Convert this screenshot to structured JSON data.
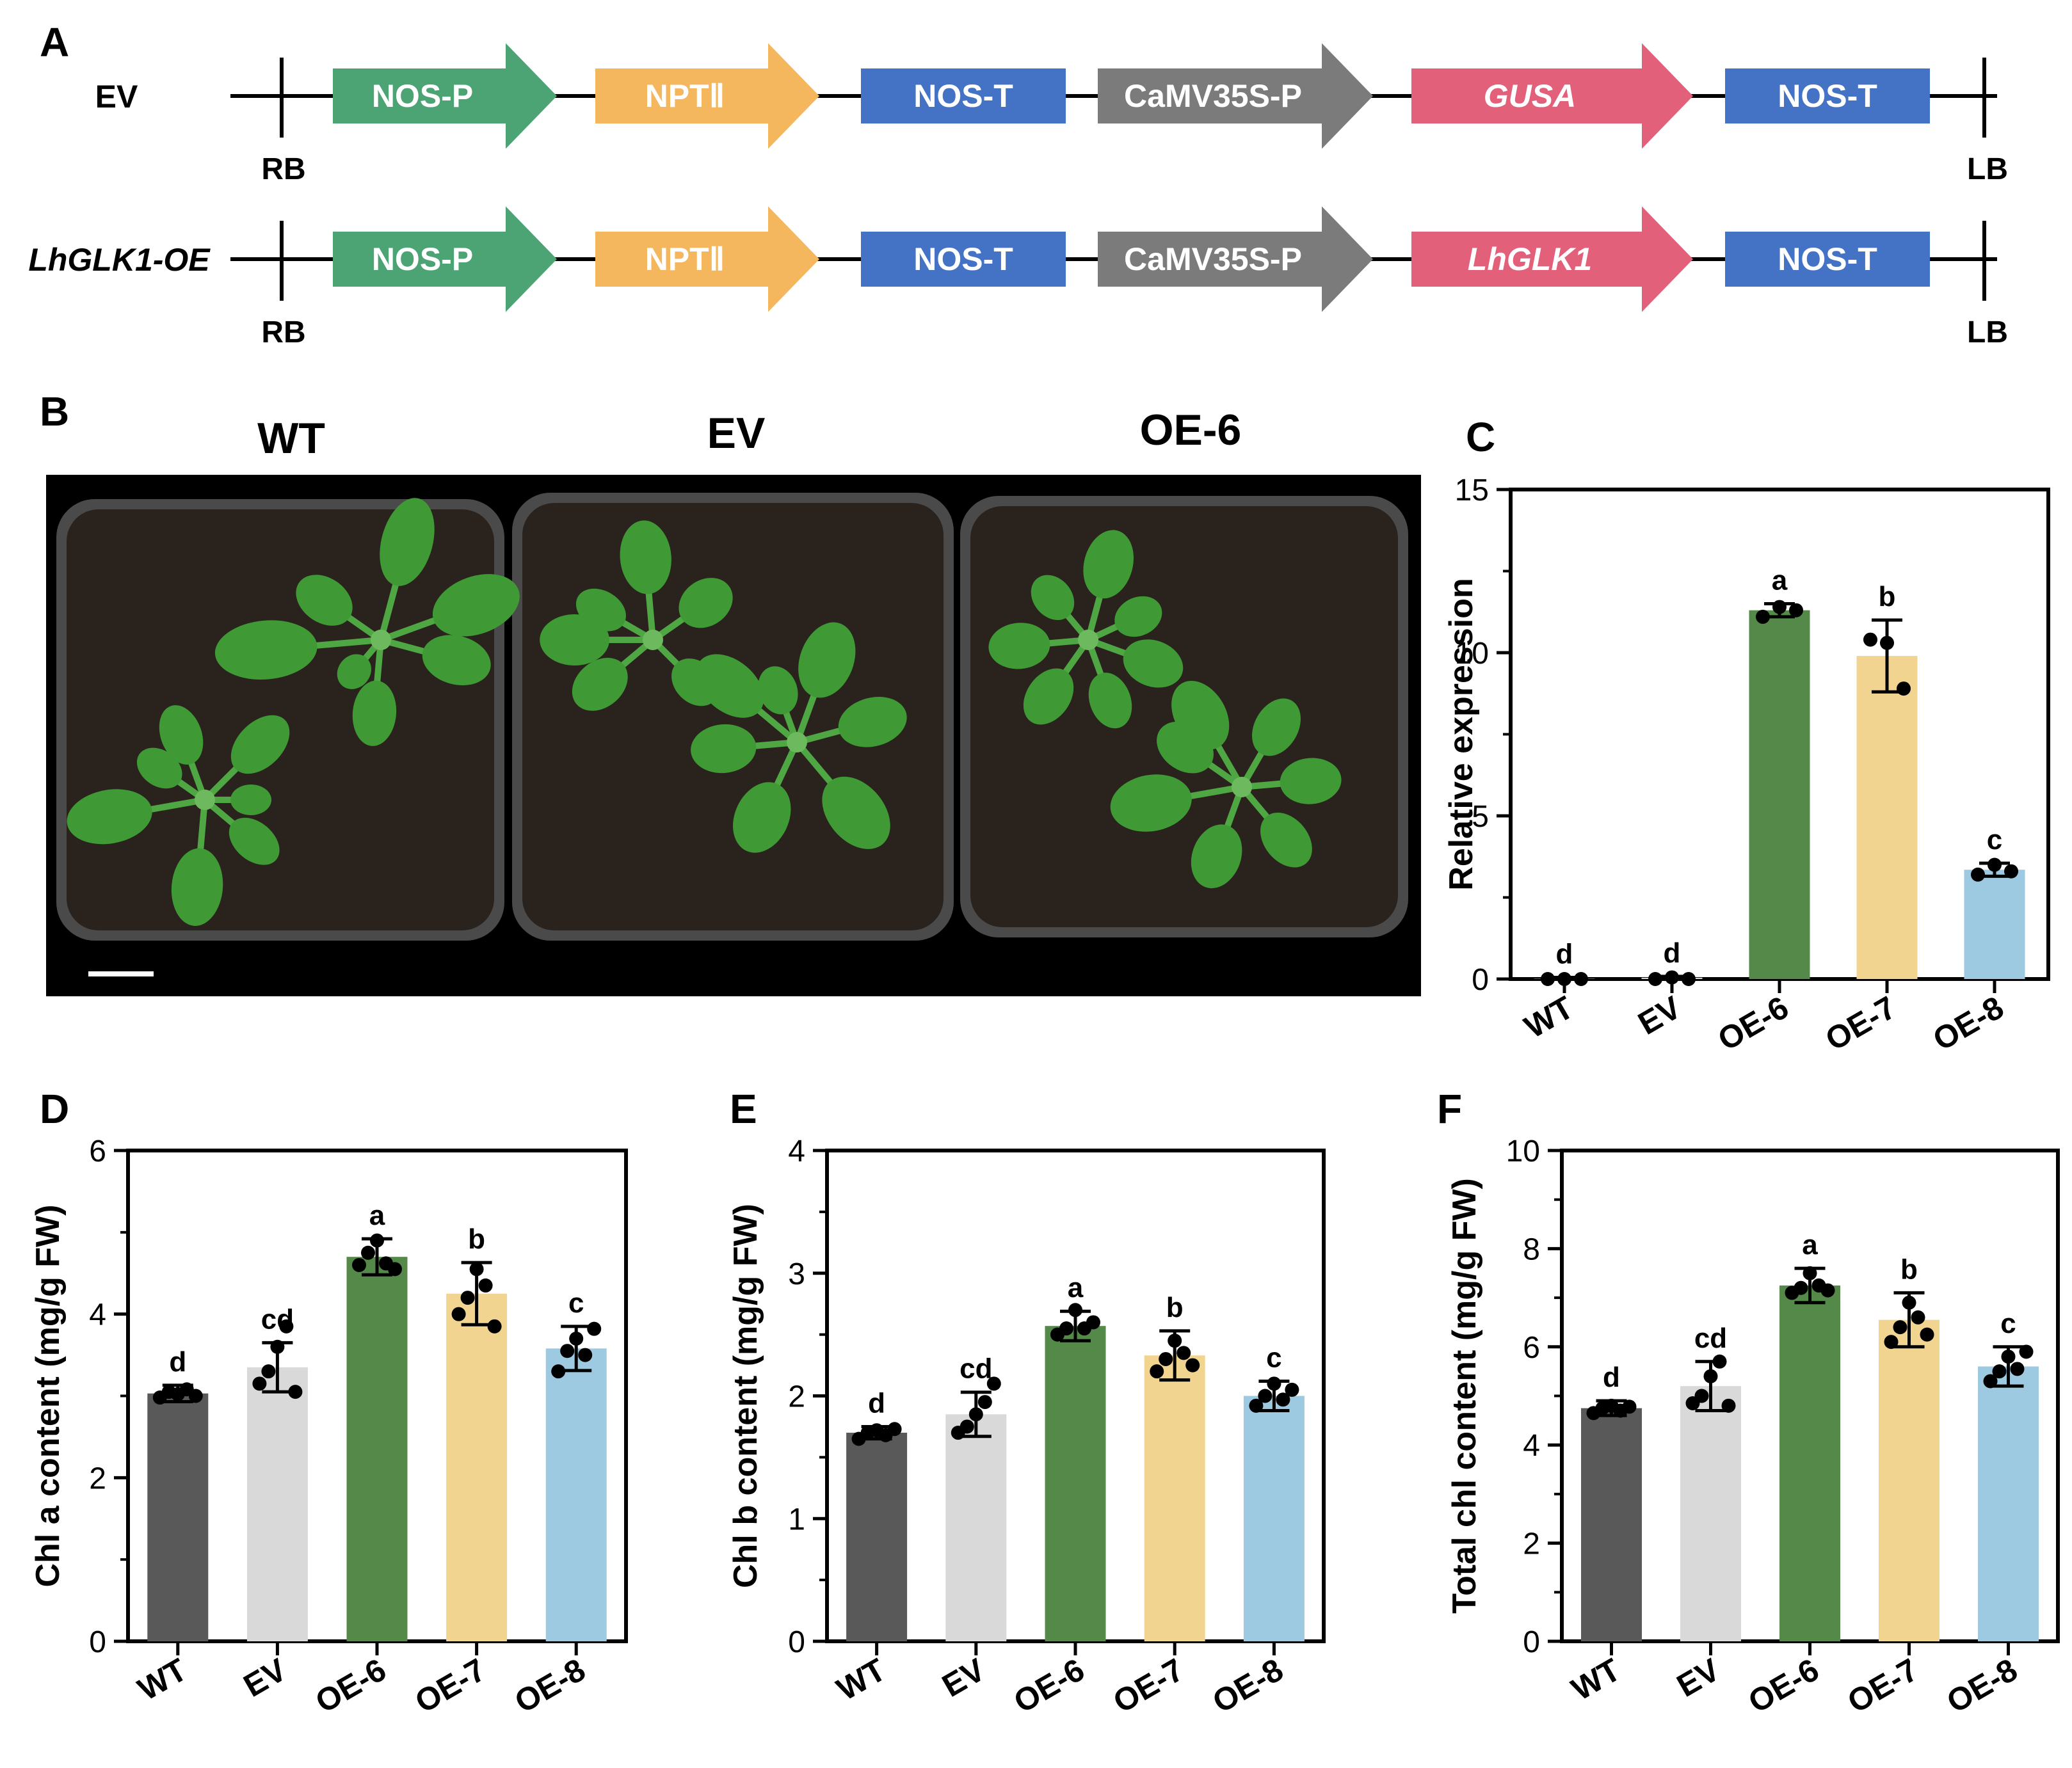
{
  "panels": {
    "A": "A",
    "B": "B",
    "C": "C",
    "D": "D",
    "E": "E",
    "F": "F"
  },
  "constructs": {
    "rows": [
      {
        "label": "EV",
        "label_italic": false,
        "left_border": "RB",
        "right_border": "LB",
        "segments": [
          {
            "text": "NOS-P",
            "shape": "arrow",
            "color": "#4ca474",
            "italic": false
          },
          {
            "text": "NPTⅡ",
            "shape": "arrow",
            "color": "#f4b75e",
            "italic": false
          },
          {
            "text": "NOS-T",
            "shape": "box",
            "color": "#4472c4",
            "italic": false
          },
          {
            "text": "CaMV35S-P",
            "shape": "arrow",
            "color": "#7b7b7b",
            "italic": false
          },
          {
            "text": "GUSA",
            "shape": "arrow",
            "color": "#e2607a",
            "italic": true
          },
          {
            "text": "NOS-T",
            "shape": "box",
            "color": "#4472c4",
            "italic": false
          }
        ]
      },
      {
        "label": "LhGLK1-OE",
        "label_italic": true,
        "left_border": "RB",
        "right_border": "LB",
        "segments": [
          {
            "text": "NOS-P",
            "shape": "arrow",
            "color": "#4ca474",
            "italic": false
          },
          {
            "text": "NPTⅡ",
            "shape": "arrow",
            "color": "#f4b75e",
            "italic": false
          },
          {
            "text": "NOS-T",
            "shape": "box",
            "color": "#4472c4",
            "italic": false
          },
          {
            "text": "CaMV35S-P",
            "shape": "arrow",
            "color": "#7b7b7b",
            "italic": false
          },
          {
            "text": "LhGLK1",
            "shape": "arrow",
            "color": "#e2607a",
            "italic": true
          },
          {
            "text": "NOS-T",
            "shape": "box",
            "color": "#4472c4",
            "italic": false
          }
        ]
      }
    ]
  },
  "photo": {
    "labels": [
      "WT",
      "EV",
      "OE-6"
    ],
    "background": "#000000",
    "soil_color": "#2a221d",
    "leaf_color": "#3f9a36"
  },
  "chart_data": [
    {
      "panel": "C",
      "type": "bar",
      "categories": [
        "WT",
        "EV",
        "OE-6",
        "OE-7",
        "OE-8"
      ],
      "values": [
        0.02,
        0.04,
        11.3,
        9.9,
        3.35
      ],
      "errors": [
        0.03,
        0.04,
        0.2,
        1.1,
        0.2
      ],
      "points": [
        [
          0.0,
          0.0,
          0.0
        ],
        [
          0.0,
          0.05,
          0.0
        ],
        [
          11.1,
          11.4,
          11.3
        ],
        [
          10.4,
          10.3,
          8.9
        ],
        [
          3.2,
          3.5,
          3.3
        ]
      ],
      "significance": [
        "d",
        "d",
        "a",
        "b",
        "c"
      ],
      "colors": [
        "#595959",
        "#d9d9d9",
        "#548949",
        "#f2d491",
        "#9ecae1"
      ],
      "ylabel": "Relative expression",
      "ylim": [
        0,
        15
      ],
      "yticks": [
        0,
        5,
        10,
        15
      ]
    },
    {
      "panel": "D",
      "type": "bar",
      "categories": [
        "WT",
        "EV",
        "OE-6",
        "OE-7",
        "OE-8"
      ],
      "values": [
        3.03,
        3.35,
        4.7,
        4.25,
        3.58
      ],
      "errors": [
        0.1,
        0.3,
        0.22,
        0.38,
        0.27
      ],
      "points": [
        [
          2.98,
          3.05,
          3.02,
          3.08,
          3.0
        ],
        [
          3.15,
          3.3,
          3.6,
          3.85,
          3.05
        ],
        [
          4.6,
          4.75,
          4.9,
          4.62,
          4.55
        ],
        [
          4.0,
          4.2,
          4.55,
          4.35,
          3.85
        ],
        [
          3.3,
          3.55,
          3.7,
          3.5,
          3.82
        ]
      ],
      "significance": [
        "d",
        "cd",
        "a",
        "b",
        "c"
      ],
      "colors": [
        "#595959",
        "#d9d9d9",
        "#548949",
        "#f2d491",
        "#9ecae1"
      ],
      "ylabel": "Chl a content (mg/g FW)",
      "ylim": [
        0,
        6
      ],
      "yticks": [
        0,
        2,
        4,
        6
      ]
    },
    {
      "panel": "E",
      "type": "bar",
      "categories": [
        "WT",
        "EV",
        "OE-6",
        "OE-7",
        "OE-8"
      ],
      "values": [
        1.7,
        1.85,
        2.57,
        2.33,
        2.0
      ],
      "errors": [
        0.05,
        0.18,
        0.12,
        0.2,
        0.12
      ],
      "points": [
        [
          1.65,
          1.7,
          1.72,
          1.68,
          1.73
        ],
        [
          1.7,
          1.75,
          1.85,
          1.95,
          2.1
        ],
        [
          2.5,
          2.55,
          2.7,
          2.55,
          2.6
        ],
        [
          2.2,
          2.3,
          2.45,
          2.35,
          2.25
        ],
        [
          1.92,
          2.0,
          2.1,
          1.97,
          2.05
        ]
      ],
      "significance": [
        "d",
        "cd",
        "a",
        "b",
        "c"
      ],
      "colors": [
        "#595959",
        "#d9d9d9",
        "#548949",
        "#f2d491",
        "#9ecae1"
      ],
      "ylabel": "Chl b content (mg/g FW)",
      "ylim": [
        0,
        4
      ],
      "yticks": [
        0,
        1,
        2,
        3,
        4
      ]
    },
    {
      "panel": "F",
      "type": "bar",
      "categories": [
        "WT",
        "EV",
        "OE-6",
        "OE-7",
        "OE-8"
      ],
      "values": [
        4.75,
        5.2,
        7.25,
        6.55,
        5.6
      ],
      "errors": [
        0.15,
        0.5,
        0.35,
        0.55,
        0.4
      ],
      "points": [
        [
          4.65,
          4.75,
          4.8,
          4.7,
          4.78
        ],
        [
          4.85,
          5.0,
          5.4,
          5.7,
          4.8
        ],
        [
          7.1,
          7.2,
          7.5,
          7.25,
          7.15
        ],
        [
          6.1,
          6.4,
          6.9,
          6.6,
          6.25
        ],
        [
          5.3,
          5.5,
          5.8,
          5.55,
          5.9
        ]
      ],
      "significance": [
        "d",
        "cd",
        "a",
        "b",
        "c"
      ],
      "colors": [
        "#595959",
        "#d9d9d9",
        "#548949",
        "#f2d491",
        "#9ecae1"
      ],
      "ylabel": "Total chl content (mg/g FW)",
      "ylim": [
        0,
        10
      ],
      "yticks": [
        0,
        2,
        4,
        6,
        8,
        10
      ]
    }
  ]
}
